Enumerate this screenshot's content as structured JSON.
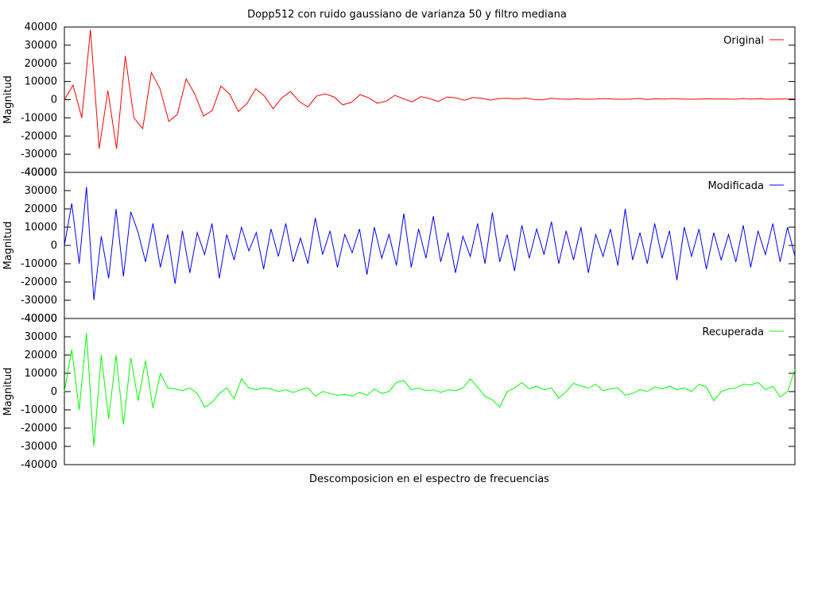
{
  "chart_data": {
    "type": "line",
    "title": "Dopp512 con ruido gaussiano de varianza 50 y filtro mediana",
    "xlabel": "Descomposicion en el espectro de frecuencias",
    "grid": false,
    "legend_position": "top-right",
    "x_range": [
      0,
      512
    ],
    "panels": [
      {
        "name": "Original",
        "color": "#ff0000",
        "ylabel": "Magnitud",
        "ylim": [
          -40000,
          40000
        ],
        "yticks": [
          -40000,
          -30000,
          -20000,
          -10000,
          0,
          10000,
          20000,
          30000,
          40000
        ],
        "ytick_labels": [
          "-40000",
          "-30000",
          "-20000",
          "-10000",
          "0",
          "10000",
          "20000",
          "30000",
          "40000"
        ],
        "values": [
          0,
          8000,
          -10000,
          38500,
          -27000,
          5000,
          -27000,
          24000,
          -10000,
          -16000,
          15000,
          6000,
          -12000,
          -8000,
          11500,
          3000,
          -9000,
          -6000,
          7500,
          3000,
          -6500,
          -2000,
          6000,
          2000,
          -5000,
          1000,
          4500,
          -1000,
          -4000,
          2000,
          3200,
          1500,
          -2800,
          -1500,
          2800,
          1000,
          -2000,
          -800,
          2400,
          500,
          -1200,
          1700,
          600,
          -1000,
          1500,
          1000,
          -300,
          1200,
          800,
          -200,
          600,
          800,
          300,
          900,
          100,
          -100,
          800,
          400,
          200,
          500,
          200,
          300,
          600,
          400,
          200,
          300,
          700,
          100,
          500,
          300,
          600,
          400,
          200,
          300,
          500,
          300,
          400,
          200,
          600,
          300,
          500,
          200,
          400,
          300,
          500
        ]
      },
      {
        "name": "Modificada",
        "color": "#0000ff",
        "ylabel": "Magnitud",
        "ylim": [
          -40000,
          40000
        ],
        "yticks": [
          -40000,
          -30000,
          -20000,
          -10000,
          0,
          10000,
          20000,
          30000,
          40000
        ],
        "ytick_labels": [
          "-40000",
          "-30000",
          "-20000",
          "-10000",
          "0",
          "10000",
          "20000",
          "30000",
          "40000"
        ],
        "values": [
          0,
          23000,
          -10000,
          32000,
          -30000,
          5000,
          -18000,
          20000,
          -17000,
          18500,
          7000,
          -9000,
          12000,
          -12000,
          6000,
          -21000,
          8000,
          -15000,
          7000,
          -5000,
          12000,
          -18000,
          6000,
          -8000,
          10000,
          -3000,
          7000,
          -13000,
          9000,
          -6000,
          12000,
          -9000,
          4000,
          -10000,
          15000,
          -5000,
          8000,
          -12000,
          6000,
          -4000,
          9000,
          -16000,
          10000,
          -7000,
          6000,
          -11000,
          17500,
          -12000,
          9000,
          -7000,
          16000,
          -9000,
          7000,
          -15000,
          5000,
          -6000,
          12000,
          -10000,
          18000,
          -9000,
          6000,
          -14000,
          11000,
          -7000,
          9000,
          -5000,
          13000,
          -10000,
          8000,
          -8000,
          10000,
          -15000,
          6000,
          -6000,
          9000,
          -11000,
          20000,
          -8000,
          7000,
          -10000,
          12000,
          -7000,
          8000,
          -19000,
          10000,
          -6000,
          9000,
          -13000,
          7000,
          -8000,
          6000,
          -9000,
          11000,
          -12000,
          8000,
          -5000,
          12000,
          -9000,
          10000,
          -6000
        ]
      },
      {
        "name": "Recuperada",
        "color": "#00ff00",
        "ylabel": "Magnitud",
        "ylim": [
          -40000,
          40000
        ],
        "yticks": [
          -40000,
          -30000,
          -20000,
          -10000,
          0,
          10000,
          20000,
          30000,
          40000
        ],
        "ytick_labels": [
          "-40000",
          "-30000",
          "-20000",
          "-10000",
          "0",
          "10000",
          "20000",
          "30000",
          "40000"
        ],
        "values": [
          0,
          23000,
          -10000,
          32000,
          -30000,
          20000,
          -15000,
          20000,
          -18000,
          18500,
          -5000,
          17000,
          -9000,
          10000,
          2000,
          1500,
          500,
          2000,
          -1000,
          -8500,
          -6000,
          -1000,
          2000,
          -4000,
          7000,
          2000,
          1000,
          2000,
          1500,
          0,
          1000,
          -500,
          1000,
          2000,
          -2500,
          0,
          -1000,
          -2000,
          -1500,
          -2500,
          -500,
          -2000,
          1500,
          -1000,
          0,
          5000,
          6000,
          1000,
          2000,
          500,
          1000,
          -500,
          1000,
          500,
          2000,
          7000,
          2500,
          -2500,
          -4500,
          -8500,
          0,
          2000,
          5000,
          1500,
          3000,
          1000,
          2000,
          -3500,
          0,
          4500,
          3000,
          2000,
          4000,
          500,
          1500,
          2000,
          -2000,
          -1000,
          1000,
          0,
          2500,
          1500,
          3000,
          1000,
          2000,
          0,
          4000,
          2500,
          -5000,
          0,
          1500,
          2000,
          4000,
          3500,
          5000,
          1000,
          3000,
          -3000,
          0,
          12000
        ]
      }
    ]
  }
}
